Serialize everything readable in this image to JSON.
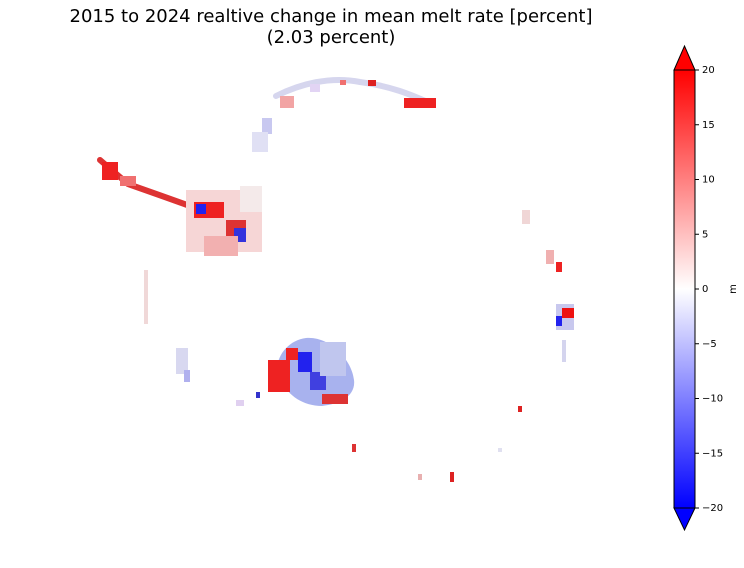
{
  "chart_data": {
    "type": "heatmap",
    "title_line1": "2015 to 2024 realtive change in mean melt rate [percent]",
    "title_line2": "(2.03 percent)",
    "colorbar": {
      "label": "m",
      "vmin": -20,
      "vmax": 20,
      "ticks": [
        20,
        15,
        10,
        5,
        0,
        -5,
        -10,
        -15,
        -20
      ],
      "extend": "both",
      "colormap": "bwr",
      "colors": {
        "low": "#0000ff",
        "mid": "#ffffff",
        "high": "#ff0000"
      }
    }
  }
}
